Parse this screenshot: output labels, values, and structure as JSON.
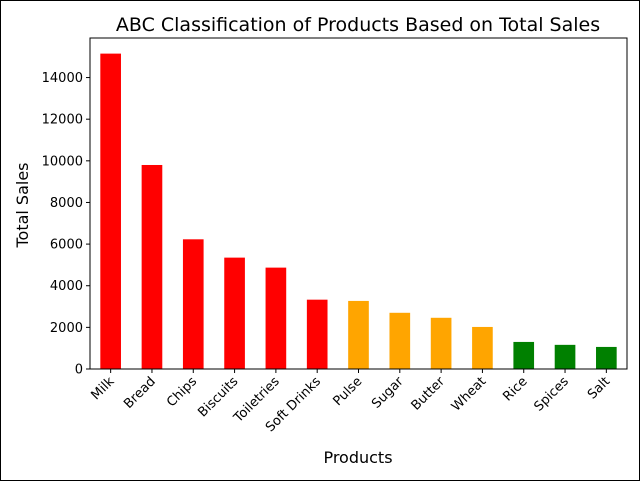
{
  "chart_data": {
    "type": "bar",
    "title": "ABC Classification of Products Based on Total Sales",
    "xlabel": "Products",
    "ylabel": "Total Sales",
    "ylim": [
      0,
      15900
    ],
    "yticks": [
      0,
      2000,
      4000,
      6000,
      8000,
      10000,
      12000,
      14000
    ],
    "grid": false,
    "categories": [
      "Milk",
      "Bread",
      "Chips",
      "Biscuits",
      "Toiletries",
      "Soft Drinks",
      "Pulse",
      "Sugar",
      "Butter",
      "Wheat",
      "Rice",
      "Spices",
      "Salt"
    ],
    "values": [
      15150,
      9800,
      6230,
      5350,
      4870,
      3330,
      3270,
      2700,
      2460,
      2020,
      1300,
      1160,
      1060
    ],
    "bar_colors": [
      "#ff0000",
      "#ff0000",
      "#ff0000",
      "#ff0000",
      "#ff0000",
      "#ff0000",
      "#ffa500",
      "#ffa500",
      "#ffa500",
      "#ffa500",
      "#008000",
      "#008000",
      "#008000"
    ]
  }
}
